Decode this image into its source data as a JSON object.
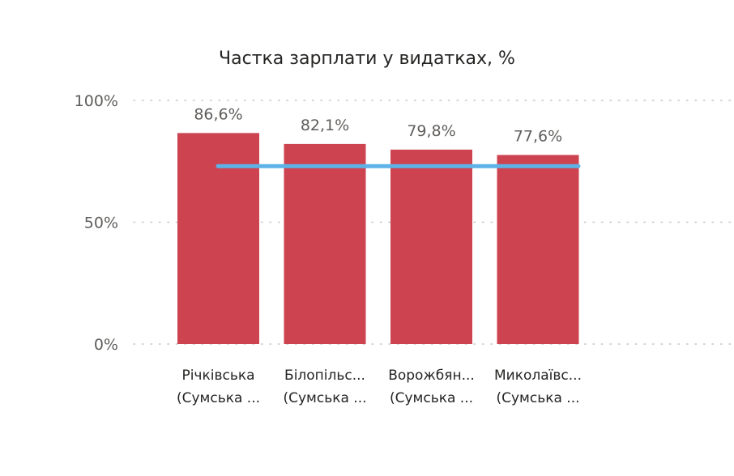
{
  "chart_data": {
    "type": "bar",
    "title": "Частка зарплати у видатках, %",
    "xlabel": "",
    "ylabel": "",
    "ylim": [
      0,
      100
    ],
    "yticks": [
      {
        "value": 0,
        "label": "0%"
      },
      {
        "value": 50,
        "label": "50%"
      },
      {
        "value": 100,
        "label": "100%"
      }
    ],
    "categories": [
      {
        "line1": "Річківська",
        "line2": "(Сумська ..."
      },
      {
        "line1": "Білопільс...",
        "line2": "(Сумська ..."
      },
      {
        "line1": "Ворожбян...",
        "line2": "(Сумська ..."
      },
      {
        "line1": "Миколаївс...",
        "line2": "(Сумська ..."
      }
    ],
    "values": [
      86.6,
      82.1,
      79.8,
      77.6
    ],
    "value_labels": [
      "86,6%",
      "82,1%",
      "79,8%",
      "77,6%"
    ],
    "reference_line": 73,
    "grid": true,
    "colors": {
      "bar": "#cd4350",
      "reference_line": "#5db3e8",
      "grid": "#c8c6c4"
    }
  }
}
